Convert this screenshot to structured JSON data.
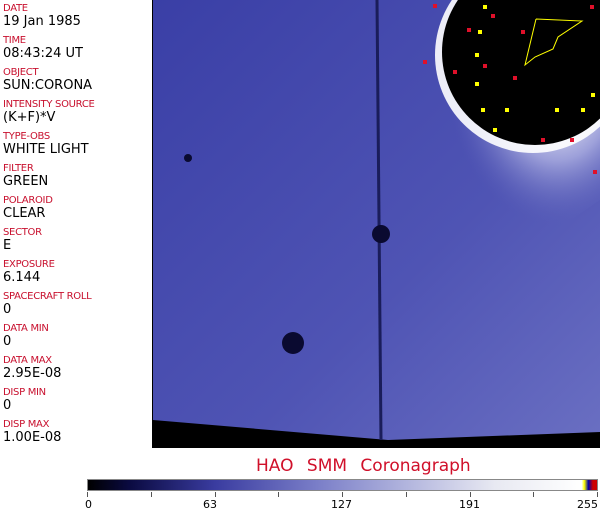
{
  "fields": [
    {
      "label": "DATE",
      "value": "19 Jan 1985"
    },
    {
      "label": "TIME",
      "value": "08:43:24 UT"
    },
    {
      "label": "OBJECT",
      "value": "SUN:CORONA"
    },
    {
      "label": "INTENSITY SOURCE",
      "value": "(K+F)*V"
    },
    {
      "label": "TYPE-OBS",
      "value": "WHITE LIGHT"
    },
    {
      "label": "FILTER",
      "value": "GREEN"
    },
    {
      "label": "POLAROID",
      "value": "CLEAR"
    },
    {
      "label": "SECTOR",
      "value": "E"
    },
    {
      "label": "EXPOSURE",
      "value": "6.144"
    },
    {
      "label": "SPACECRAFT ROLL",
      "value": "0"
    },
    {
      "label": "DATA MIN",
      "value": "0"
    },
    {
      "label": "DATA MAX",
      "value": "2.95E-08"
    },
    {
      "label": "DISP MIN",
      "value": "0"
    },
    {
      "label": "DISP MAX",
      "value": "1.00E-08"
    }
  ],
  "title": "HAO  SMM  Coronagraph",
  "colorbar": {
    "ticks": [
      "0",
      "63",
      "127",
      "191",
      "255"
    ],
    "colors": {
      "low": "#000000",
      "mid": "#6f73c4",
      "high": "#ffffff"
    }
  }
}
